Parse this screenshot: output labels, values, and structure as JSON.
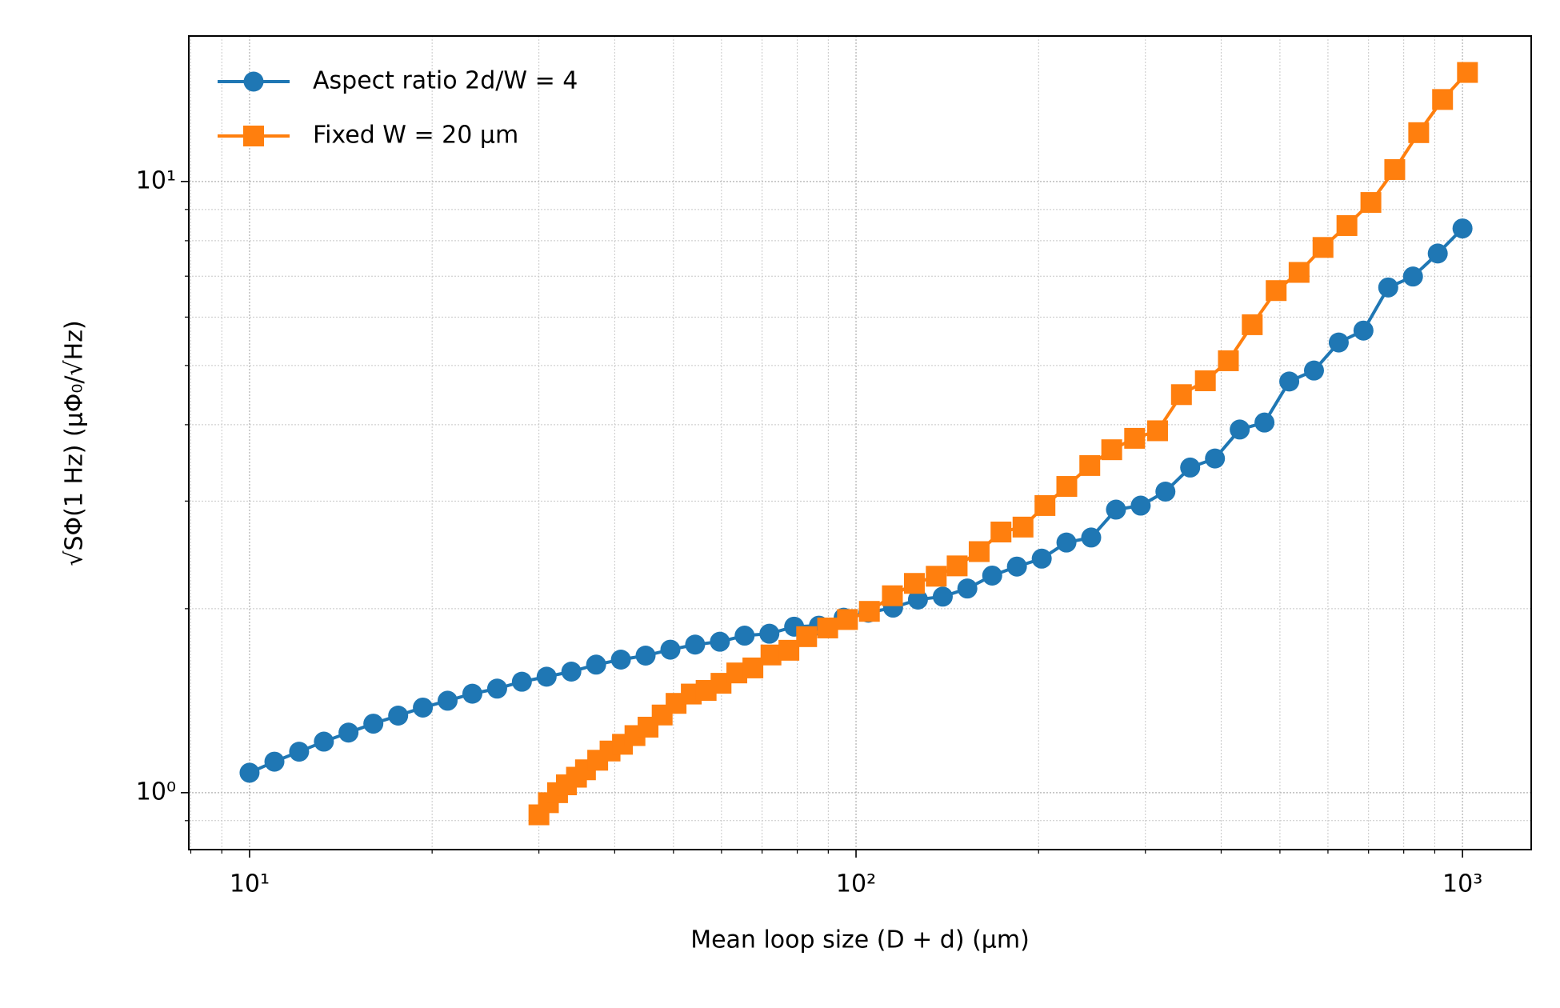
{
  "chart_data": {
    "type": "line",
    "xlabel": "Mean loop size (D + d) (μm)",
    "ylabel": "√SΦ(1 Hz)   (μΦ₀/√Hz)",
    "xlog": true,
    "ylog": true,
    "grid": true,
    "legend": "upper left",
    "xlim": [
      7.94,
      1298
    ],
    "ylim": [
      0.807,
      17.3
    ],
    "xticks": [
      {
        "value": 10,
        "label": "10¹"
      },
      {
        "value": 100,
        "label": "10²"
      },
      {
        "value": 1000,
        "label": "10³"
      }
    ],
    "xminorticks": [
      8,
      9,
      20,
      30,
      40,
      50,
      60,
      70,
      80,
      90,
      200,
      300,
      400,
      500,
      600,
      700,
      800,
      900
    ],
    "yticks": [
      {
        "value": 1,
        "label": "10⁰"
      },
      {
        "value": 10,
        "label": "10¹"
      }
    ],
    "yminorticks": [
      0.9,
      2,
      3,
      4,
      5,
      6,
      7,
      8,
      9
    ],
    "series": [
      {
        "name": "Aspect ratio 2d/W = 4",
        "color": "#1f77b4",
        "marker": "circle",
        "x": [
          10,
          10.99,
          12.07,
          13.26,
          14.56,
          16.0,
          17.58,
          19.31,
          21.21,
          23.3,
          25.6,
          28.12,
          30.89,
          33.93,
          37.28,
          40.95,
          44.98,
          49.42,
          54.29,
          59.64,
          65.51,
          71.97,
          79.06,
          86.85,
          95.41,
          104.8,
          115.1,
          126.5,
          139.0,
          152.6,
          167.7,
          184.2,
          202.4,
          222.3,
          244.2,
          268.3,
          294.7,
          323.7,
          355.6,
          390.7,
          429.2,
          471.5,
          518.0,
          569.0,
          625.1,
          686.6,
          754.3,
          828.6,
          910.3,
          1000
        ],
        "values": [
          1.078,
          1.124,
          1.167,
          1.212,
          1.254,
          1.297,
          1.337,
          1.378,
          1.414,
          1.452,
          1.48,
          1.519,
          1.548,
          1.578,
          1.62,
          1.651,
          1.676,
          1.714,
          1.747,
          1.766,
          1.807,
          1.82,
          1.869,
          1.876,
          1.933,
          1.97,
          2.008,
          2.07,
          2.093,
          2.158,
          2.266,
          2.344,
          2.415,
          2.566,
          2.615,
          2.905,
          2.949,
          3.109,
          3.404,
          3.522,
          3.928,
          4.033,
          4.707,
          4.906,
          5.452,
          5.703,
          6.708,
          6.99,
          7.624,
          8.378
        ]
      },
      {
        "name": "Fixed W = 20 μm",
        "color": "#ff7f0e",
        "marker": "square",
        "x": [
          30.0,
          31.1,
          32.2,
          33.3,
          34.6,
          35.8,
          37.5,
          39.3,
          41.2,
          43.2,
          45.4,
          47.9,
          50.5,
          53.5,
          56.6,
          59.9,
          63.6,
          67.6,
          72.4,
          77.5,
          82.9,
          89.8,
          96.8,
          105.2,
          114.8,
          124.8,
          135.6,
          146.8,
          159.6,
          173.4,
          188.5,
          204.9,
          222.6,
          242.9,
          264.0,
          288.0,
          314.2,
          344.0,
          376.7,
          411.1,
          450.1,
          492.9,
          537.7,
          588.8,
          644.8,
          706.2,
          773.2,
          846.8,
          927.1,
          1019
        ],
        "values": [
          0.92,
          0.963,
          1.0,
          1.03,
          1.06,
          1.09,
          1.13,
          1.17,
          1.2,
          1.24,
          1.28,
          1.34,
          1.4,
          1.45,
          1.47,
          1.51,
          1.57,
          1.6,
          1.68,
          1.71,
          1.8,
          1.86,
          1.92,
          1.98,
          2.1,
          2.2,
          2.26,
          2.35,
          2.48,
          2.67,
          2.72,
          2.95,
          3.17,
          3.43,
          3.64,
          3.8,
          3.91,
          4.48,
          4.72,
          5.09,
          5.83,
          6.63,
          7.1,
          7.8,
          8.47,
          9.24,
          10.46,
          12.02,
          13.62,
          15.08
        ]
      }
    ]
  }
}
